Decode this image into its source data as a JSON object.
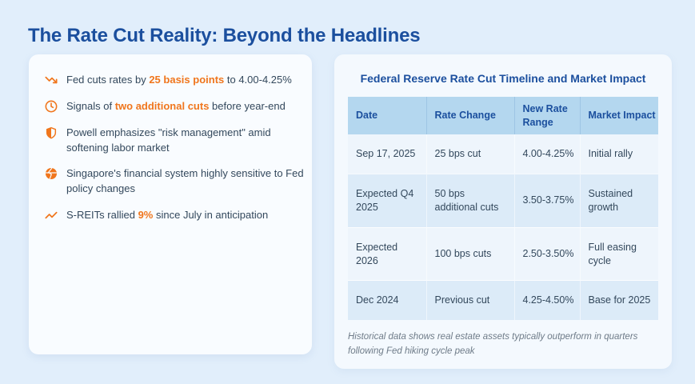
{
  "page": {
    "title": "The Rate Cut Reality: Beyond the Headlines"
  },
  "colors": {
    "background": "#e1eefb",
    "title_blue": "#1b4f9e",
    "accent_orange": "#f0761d",
    "table_header_bg": "#b4d7ef",
    "row_alt_bg": "#dcebf8",
    "body_text": "#33485c"
  },
  "key_points": [
    {
      "icon": "trending-down-icon",
      "parts": [
        {
          "text": "Fed cuts rates by "
        },
        {
          "text": "25 basis points",
          "highlight": true
        },
        {
          "text": " to 4.00-4.25%"
        }
      ]
    },
    {
      "icon": "clock-icon",
      "parts": [
        {
          "text": "Signals of "
        },
        {
          "text": "two additional cuts",
          "highlight": true
        },
        {
          "text": " before year-end"
        }
      ]
    },
    {
      "icon": "shield-half-icon",
      "parts": [
        {
          "text": "Powell emphasizes \"risk management\" amid softening labor market"
        }
      ]
    },
    {
      "icon": "globe-icon",
      "parts": [
        {
          "text": "Singapore's financial system highly sensitive to Fed policy changes"
        }
      ]
    },
    {
      "icon": "trending-up-icon",
      "parts": [
        {
          "text": "S-REITs rallied "
        },
        {
          "text": "9%",
          "highlight": true
        },
        {
          "text": " since July in anticipation"
        }
      ]
    }
  ],
  "table_panel": {
    "title": "Federal Reserve Rate Cut Timeline and Market Impact",
    "columns": [
      "Date",
      "Rate Change",
      "New Rate Range",
      "Market Impact"
    ],
    "rows": [
      [
        "Sep 17, 2025",
        "25 bps cut",
        "4.00-4.25%",
        "Initial rally"
      ],
      [
        "Expected Q4 2025",
        "50 bps additional cuts",
        "3.50-3.75%",
        "Sustained growth"
      ],
      [
        "Expected 2026",
        "100 bps cuts",
        "2.50-3.50%",
        "Full easing cycle"
      ],
      [
        "Dec 2024",
        "Previous cut",
        "4.25-4.50%",
        "Base for 2025"
      ]
    ],
    "footnote": "Historical data shows real estate assets typically outperform in quarters following Fed hiking cycle peak"
  }
}
